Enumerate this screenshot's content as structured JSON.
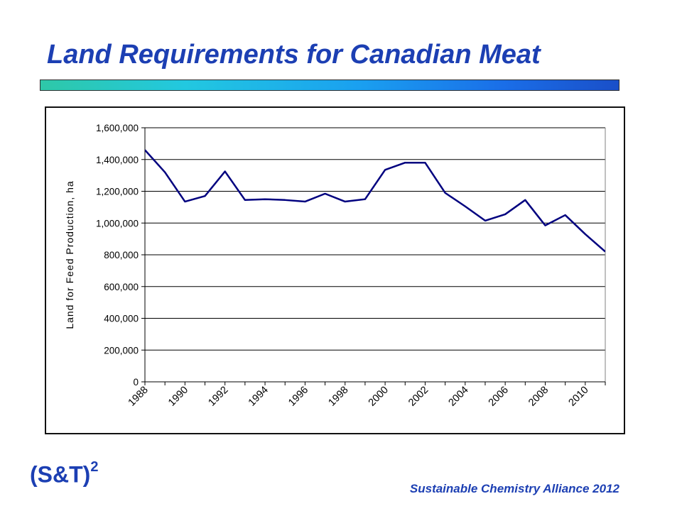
{
  "slide": {
    "title": "Land Requirements for Canadian Meat",
    "footer": "Sustainable Chemistry Alliance 2012",
    "logo_text": "(S&T)",
    "logo_superscript": "2"
  },
  "colors": {
    "title": "#1c3fb3",
    "line": "#00007f",
    "gridline": "#000000"
  },
  "chart_data": {
    "type": "line",
    "title": "",
    "xlabel": "",
    "ylabel": "Land for Feed Production, ha",
    "ylim": [
      0,
      1600000
    ],
    "yticks": [
      "0",
      "200,000",
      "400,000",
      "600,000",
      "800,000",
      "1,000,000",
      "1,200,000",
      "1,400,000",
      "1,600,000"
    ],
    "ytick_values": [
      0,
      200000,
      400000,
      600000,
      800000,
      1000000,
      1200000,
      1400000,
      1600000
    ],
    "xtick_labels": [
      "1988",
      "1990",
      "1992",
      "1994",
      "1996",
      "1998",
      "2000",
      "2002",
      "2004",
      "2006",
      "2008",
      "2010"
    ],
    "grid": true,
    "x": [
      1988,
      1989,
      1990,
      1991,
      1992,
      1993,
      1994,
      1995,
      1996,
      1997,
      1998,
      1999,
      2000,
      2001,
      2002,
      2003,
      2004,
      2005,
      2006,
      2007,
      2008,
      2009,
      2010,
      2011
    ],
    "series": [
      {
        "values": [
          1460000,
          1320000,
          1135000,
          1170000,
          1325000,
          1145000,
          1150000,
          1145000,
          1135000,
          1185000,
          1135000,
          1150000,
          1335000,
          1380000,
          1380000,
          1190000,
          1105000,
          1015000,
          1055000,
          1145000,
          985000,
          1050000,
          930000,
          820000
        ]
      }
    ]
  }
}
